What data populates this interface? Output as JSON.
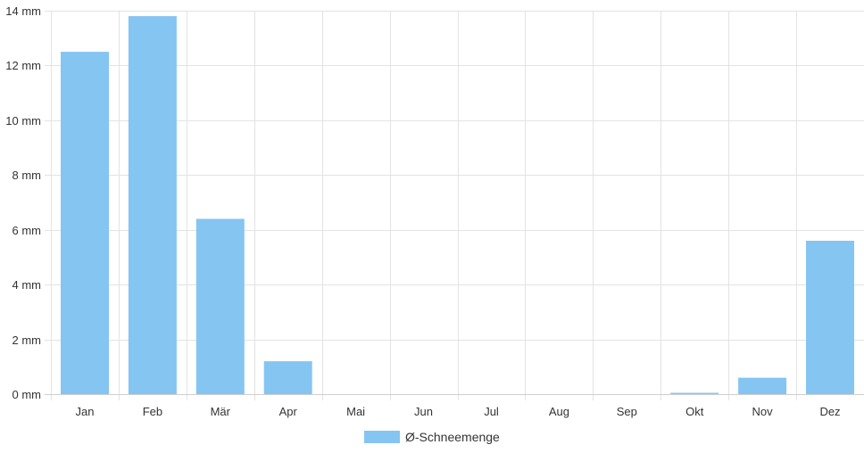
{
  "chart_data": {
    "type": "bar",
    "categories": [
      "Jan",
      "Feb",
      "Mär",
      "Apr",
      "Mai",
      "Jun",
      "Jul",
      "Aug",
      "Sep",
      "Okt",
      "Nov",
      "Dez"
    ],
    "series": [
      {
        "name": "Ø-Schneemenge",
        "values": [
          12.5,
          13.8,
          6.4,
          1.2,
          0,
          0,
          0,
          0,
          0,
          0.05,
          0.6,
          5.6
        ],
        "color": "#85c5f2"
      }
    ],
    "y_ticks": [
      "0 mm",
      "2 mm",
      "4 mm",
      "6 mm",
      "8 mm",
      "10 mm",
      "12 mm",
      "14 mm"
    ],
    "ylim": [
      0,
      14
    ],
    "grid": true,
    "legend_position": "bottom-center"
  }
}
